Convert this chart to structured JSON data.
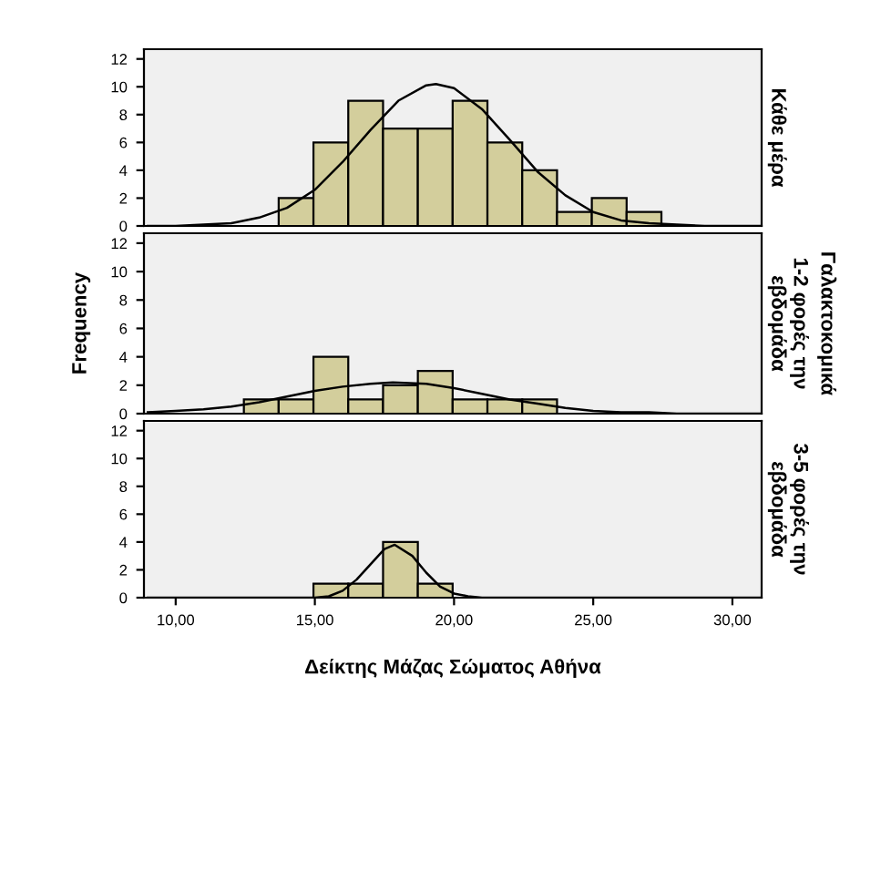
{
  "chart_data": [
    {
      "type": "histogram",
      "title": "Κάθε μέρα",
      "bins": [
        13.7,
        14.95,
        16.2,
        17.45,
        18.7,
        19.95,
        21.2,
        22.45,
        23.7,
        24.95,
        26.2,
        27.45
      ],
      "values": [
        2,
        6,
        9,
        7,
        7,
        9,
        6,
        4,
        1,
        2,
        1
      ],
      "color": "#d3ce9c",
      "xlim": [
        8.86,
        31.05
      ],
      "ylim": [
        0,
        12.7
      ],
      "yticks": [
        0,
        2,
        4,
        6,
        8,
        10,
        12
      ],
      "tick_labels": "y",
      "series": [
        {
          "type": "line",
          "color": "#000000",
          "x": [
            9,
            10,
            11,
            12,
            13,
            14,
            15,
            16,
            17,
            18,
            19,
            19.35,
            20,
            21,
            22,
            23,
            24,
            25,
            26,
            27,
            28,
            29,
            30,
            31
          ],
          "values": [
            0.0,
            0.0,
            0.1,
            0.2,
            0.6,
            1.3,
            2.6,
            4.6,
            6.9,
            9.0,
            10.1,
            10.2,
            9.9,
            8.4,
            6.2,
            3.9,
            2.2,
            1.0,
            0.4,
            0.2,
            0.1,
            0.0,
            0.0,
            0.0
          ]
        }
      ]
    },
    {
      "type": "histogram",
      "title": "1-2 φορές την\nεβδομάδα",
      "ylabel": "Frequency",
      "annotations": [
        "Γαλακτοκομικά"
      ],
      "bins": [
        12.45,
        13.7,
        14.95,
        16.2,
        17.45,
        18.7,
        19.95,
        21.2,
        22.45,
        23.7
      ],
      "values": [
        1,
        1,
        4,
        1,
        2,
        3,
        1,
        1,
        1
      ],
      "color": "#d3ce9c",
      "xlim": [
        8.86,
        31.05
      ],
      "ylim": [
        0,
        12.7
      ],
      "yticks": [
        0,
        2,
        4,
        6,
        8,
        10,
        12
      ],
      "tick_labels": "y",
      "series": [
        {
          "type": "line",
          "color": "#000000",
          "x": [
            9,
            10,
            11,
            12,
            13,
            14,
            15,
            16,
            17,
            17.8,
            19,
            20,
            21,
            22,
            23,
            24,
            25,
            26,
            27,
            28,
            29,
            30,
            31
          ],
          "values": [
            0.1,
            0.2,
            0.3,
            0.5,
            0.8,
            1.2,
            1.6,
            1.9,
            2.1,
            2.2,
            2.1,
            1.8,
            1.4,
            1.0,
            0.7,
            0.4,
            0.2,
            0.1,
            0.1,
            0.0,
            0.0,
            0.0,
            0.0
          ]
        }
      ]
    },
    {
      "type": "histogram",
      "title": "3-5 φορές την\nεβδομάδα",
      "xlabel": "Δείκτης Μάζας Σώματος Αθήνα",
      "bins": [
        14.95,
        16.2,
        17.45,
        18.7,
        19.95
      ],
      "values": [
        1,
        1,
        4,
        1
      ],
      "color": "#d3ce9c",
      "xlim": [
        8.86,
        31.05
      ],
      "ylim": [
        0,
        12.7
      ],
      "yticks": [
        0,
        2,
        4,
        6,
        8,
        10,
        12
      ],
      "xticks": [
        {
          "value": 10,
          "label": "10,00"
        },
        {
          "value": 15,
          "label": "15,00"
        },
        {
          "value": 20,
          "label": "20,00"
        },
        {
          "value": 25,
          "label": "25,00"
        },
        {
          "value": 30,
          "label": "30,00"
        }
      ],
      "series": [
        {
          "type": "line",
          "color": "#000000",
          "x": [
            9,
            14,
            15,
            15.5,
            16,
            16.5,
            17,
            17.5,
            17.87,
            18.5,
            19,
            19.5,
            20,
            20.5,
            21,
            22,
            31
          ],
          "values": [
            0.0,
            0.0,
            0.0,
            0.1,
            0.5,
            1.3,
            2.4,
            3.5,
            3.8,
            3.0,
            1.8,
            0.8,
            0.3,
            0.1,
            0.0,
            0.0,
            0.0
          ]
        }
      ]
    }
  ]
}
